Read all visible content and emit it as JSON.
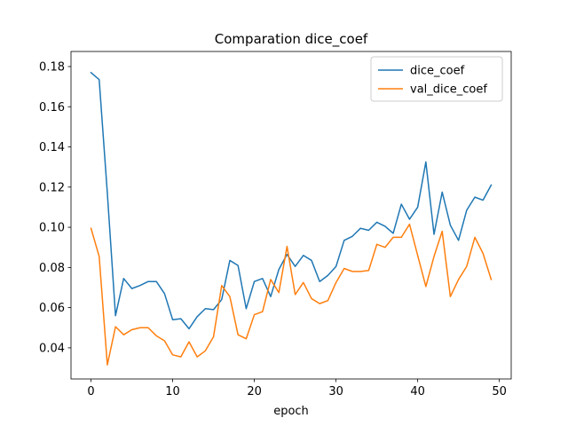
{
  "chart_data": {
    "type": "line",
    "title": "Comparation dice_coef",
    "xlabel": "epoch",
    "ylabel": "",
    "xlim": [
      -2.45,
      51.45
    ],
    "ylim": [
      0.0245,
      0.1875
    ],
    "xticks": [
      0,
      10,
      20,
      30,
      40,
      50
    ],
    "yticks": [
      0.04,
      0.06,
      0.08,
      0.1,
      0.12,
      0.14,
      0.16,
      0.18
    ],
    "ytick_labels": [
      "0.04",
      "0.06",
      "0.08",
      "0.10",
      "0.12",
      "0.14",
      "0.16",
      "0.18"
    ],
    "grid": false,
    "legend_position": "top-right",
    "x": [
      0,
      1,
      2,
      3,
      4,
      5,
      6,
      7,
      8,
      9,
      10,
      11,
      12,
      13,
      14,
      15,
      16,
      17,
      18,
      19,
      20,
      21,
      22,
      23,
      24,
      25,
      26,
      27,
      28,
      29,
      30,
      31,
      32,
      33,
      34,
      35,
      36,
      37,
      38,
      39,
      40,
      41,
      42,
      43,
      44,
      45,
      46,
      47,
      48,
      49
    ],
    "series": [
      {
        "name": "dice_coef",
        "color": "#1f77b4",
        "values": [
          0.177,
          0.1735,
          0.117,
          0.056,
          0.0745,
          0.0695,
          0.071,
          0.073,
          0.073,
          0.067,
          0.054,
          0.0545,
          0.0495,
          0.0555,
          0.0595,
          0.059,
          0.064,
          0.0835,
          0.081,
          0.0595,
          0.073,
          0.0745,
          0.0655,
          0.079,
          0.0865,
          0.0805,
          0.086,
          0.0835,
          0.073,
          0.076,
          0.0805,
          0.0935,
          0.0955,
          0.0995,
          0.0985,
          0.1025,
          0.1005,
          0.097,
          0.1115,
          0.104,
          0.11,
          0.1325,
          0.0965,
          0.1175,
          0.101,
          0.0935,
          0.1085,
          0.115,
          0.1135,
          0.121
        ]
      },
      {
        "name": "val_dice_coef",
        "color": "#ff7f0e",
        "values": [
          0.0995,
          0.0855,
          0.0315,
          0.0505,
          0.0465,
          0.049,
          0.05,
          0.05,
          0.046,
          0.0435,
          0.0365,
          0.0355,
          0.043,
          0.0355,
          0.0385,
          0.0455,
          0.071,
          0.0655,
          0.0465,
          0.0445,
          0.0565,
          0.058,
          0.074,
          0.0675,
          0.0905,
          0.0665,
          0.0725,
          0.0645,
          0.062,
          0.0635,
          0.0725,
          0.0795,
          0.078,
          0.078,
          0.0785,
          0.0915,
          0.09,
          0.095,
          0.095,
          0.1015,
          0.086,
          0.0705,
          0.0855,
          0.098,
          0.0655,
          0.074,
          0.0805,
          0.095,
          0.087,
          0.074
        ]
      }
    ]
  }
}
